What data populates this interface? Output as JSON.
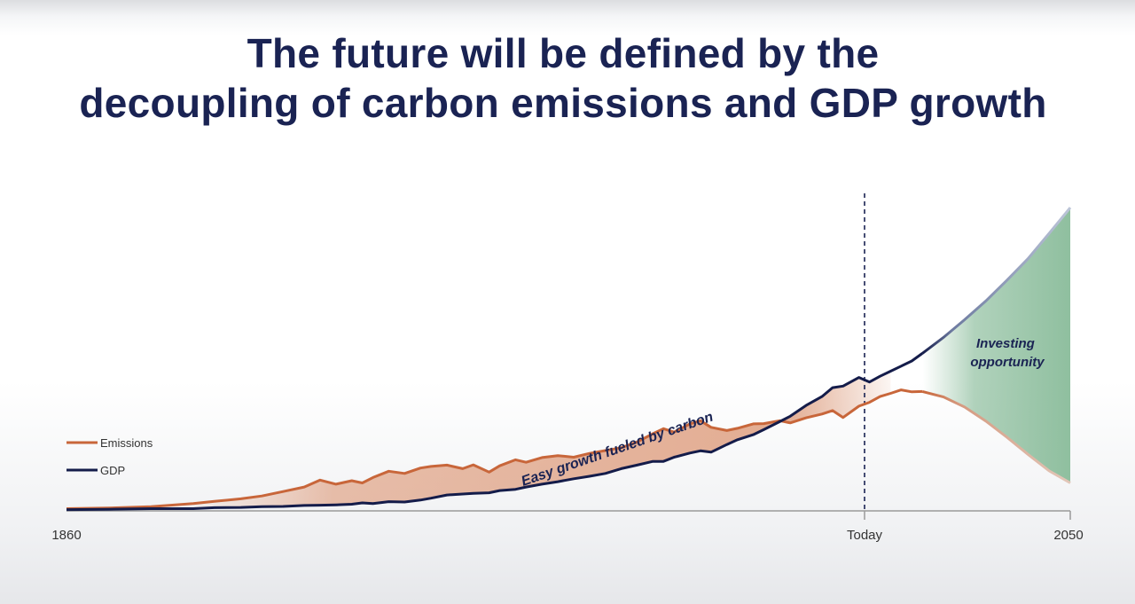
{
  "title": {
    "line1": "The future will be defined by the",
    "line2": "decoupling of carbon emissions and GDP growth"
  },
  "colors": {
    "title": "#1a2353",
    "emissions": "#c8663a",
    "gdp": "#141c4a",
    "easy_growth_fill": "#e0a487",
    "opportunity_fill": "#8fbf9f",
    "projection_line": "#a9b3c9",
    "axis": "#9a9a9a"
  },
  "chart_data": {
    "type": "line",
    "title": "The future will be defined by the decoupling of carbon emissions and GDP growth",
    "x_tick_labels": [
      "1860",
      "Today",
      "2050"
    ],
    "xlim": [
      "1860",
      "2050"
    ],
    "y_axis": "none (no scale shown)",
    "legend": {
      "placement": "left",
      "entries": [
        "Emissions",
        "GDP"
      ]
    },
    "series": [
      {
        "name": "Emissions",
        "x": [
          1860,
          1868,
          1876,
          1884,
          1888,
          1893,
          1897,
          1901,
          1905,
          1908,
          1911,
          1914,
          1916,
          1918,
          1921,
          1924,
          1927,
          1929,
          1932,
          1935,
          1937,
          1940,
          1942,
          1945,
          1947,
          1950,
          1953,
          1956,
          1959,
          1962,
          1965,
          1968,
          1971,
          1973,
          1975,
          1978,
          1980,
          1982,
          1985,
          1987,
          1990,
          1992,
          1995,
          1997,
          2000,
          2003,
          2005,
          2007,
          2010,
          2012,
          2014,
          2016,
          2018,
          2020,
          2022
        ],
        "y": [
          0.7,
          0.9,
          1.3,
          2.3,
          3.0,
          3.8,
          4.7,
          6.1,
          7.5,
          9.7,
          8.4,
          9.5,
          8.8,
          10.5,
          12.5,
          11.8,
          13.5,
          14.0,
          14.4,
          13.3,
          14.5,
          12.2,
          14.2,
          16.1,
          15.3,
          16.8,
          17.4,
          16.9,
          18.1,
          19.0,
          19.9,
          21.7,
          24.3,
          25.9,
          24.8,
          27.4,
          28.4,
          26.3,
          25.3,
          26.0,
          27.4,
          27.5,
          28.4,
          27.7,
          29.3,
          30.5,
          31.6,
          29.4,
          33.0,
          34.2,
          36.0,
          37.0,
          38.1,
          37.5,
          37.6
        ]
      },
      {
        "name": "GDP",
        "x": [
          1860,
          1868,
          1876,
          1884,
          1888,
          1893,
          1897,
          1901,
          1905,
          1908,
          1911,
          1914,
          1916,
          1918,
          1921,
          1924,
          1927,
          1929,
          1932,
          1935,
          1937,
          1940,
          1942,
          1945,
          1947,
          1950,
          1953,
          1956,
          1959,
          1962,
          1965,
          1968,
          1971,
          1973,
          1975,
          1978,
          1980,
          1982,
          1985,
          1987,
          1990,
          1992,
          1995,
          1997,
          2000,
          2003,
          2005,
          2007,
          2010,
          2012,
          2014,
          2016,
          2018,
          2020,
          2022
        ],
        "y": [
          0.4,
          0.5,
          0.7,
          0.7,
          1.0,
          1.1,
          1.3,
          1.4,
          1.7,
          1.8,
          1.9,
          2.1,
          2.5,
          2.3,
          2.9,
          2.8,
          3.4,
          4.0,
          5.0,
          5.3,
          5.5,
          5.7,
          6.4,
          6.8,
          7.5,
          8.4,
          9.2,
          10.1,
          10.9,
          11.8,
          13.3,
          14.4,
          15.6,
          15.6,
          16.9,
          18.2,
          18.9,
          18.5,
          20.9,
          22.4,
          24.0,
          25.6,
          28.1,
          29.8,
          33.2,
          36.0,
          38.8,
          39.3,
          42.0,
          40.6,
          42.4,
          44.0,
          45.6,
          47.2,
          49.6
        ]
      },
      {
        "name": "GDP (projection)",
        "x": [
          2022,
          2026,
          2030,
          2034,
          2038,
          2042,
          2046,
          2050
        ],
        "y": [
          49.6,
          54.6,
          60.2,
          66.1,
          72.6,
          79.4,
          87.4,
          95.5
        ]
      },
      {
        "name": "Emissions (projection)",
        "x": [
          2022,
          2026,
          2030,
          2034,
          2038,
          2042,
          2046,
          2050
        ],
        "y": [
          37.6,
          35.9,
          32.7,
          28.3,
          23.2,
          17.8,
          12.6,
          8.8
        ]
      }
    ],
    "annotations": [
      "Easy growth fueled by carbon",
      "Investing opportunity"
    ],
    "reference_line": {
      "x_label": "Today",
      "style": "dashed"
    }
  }
}
